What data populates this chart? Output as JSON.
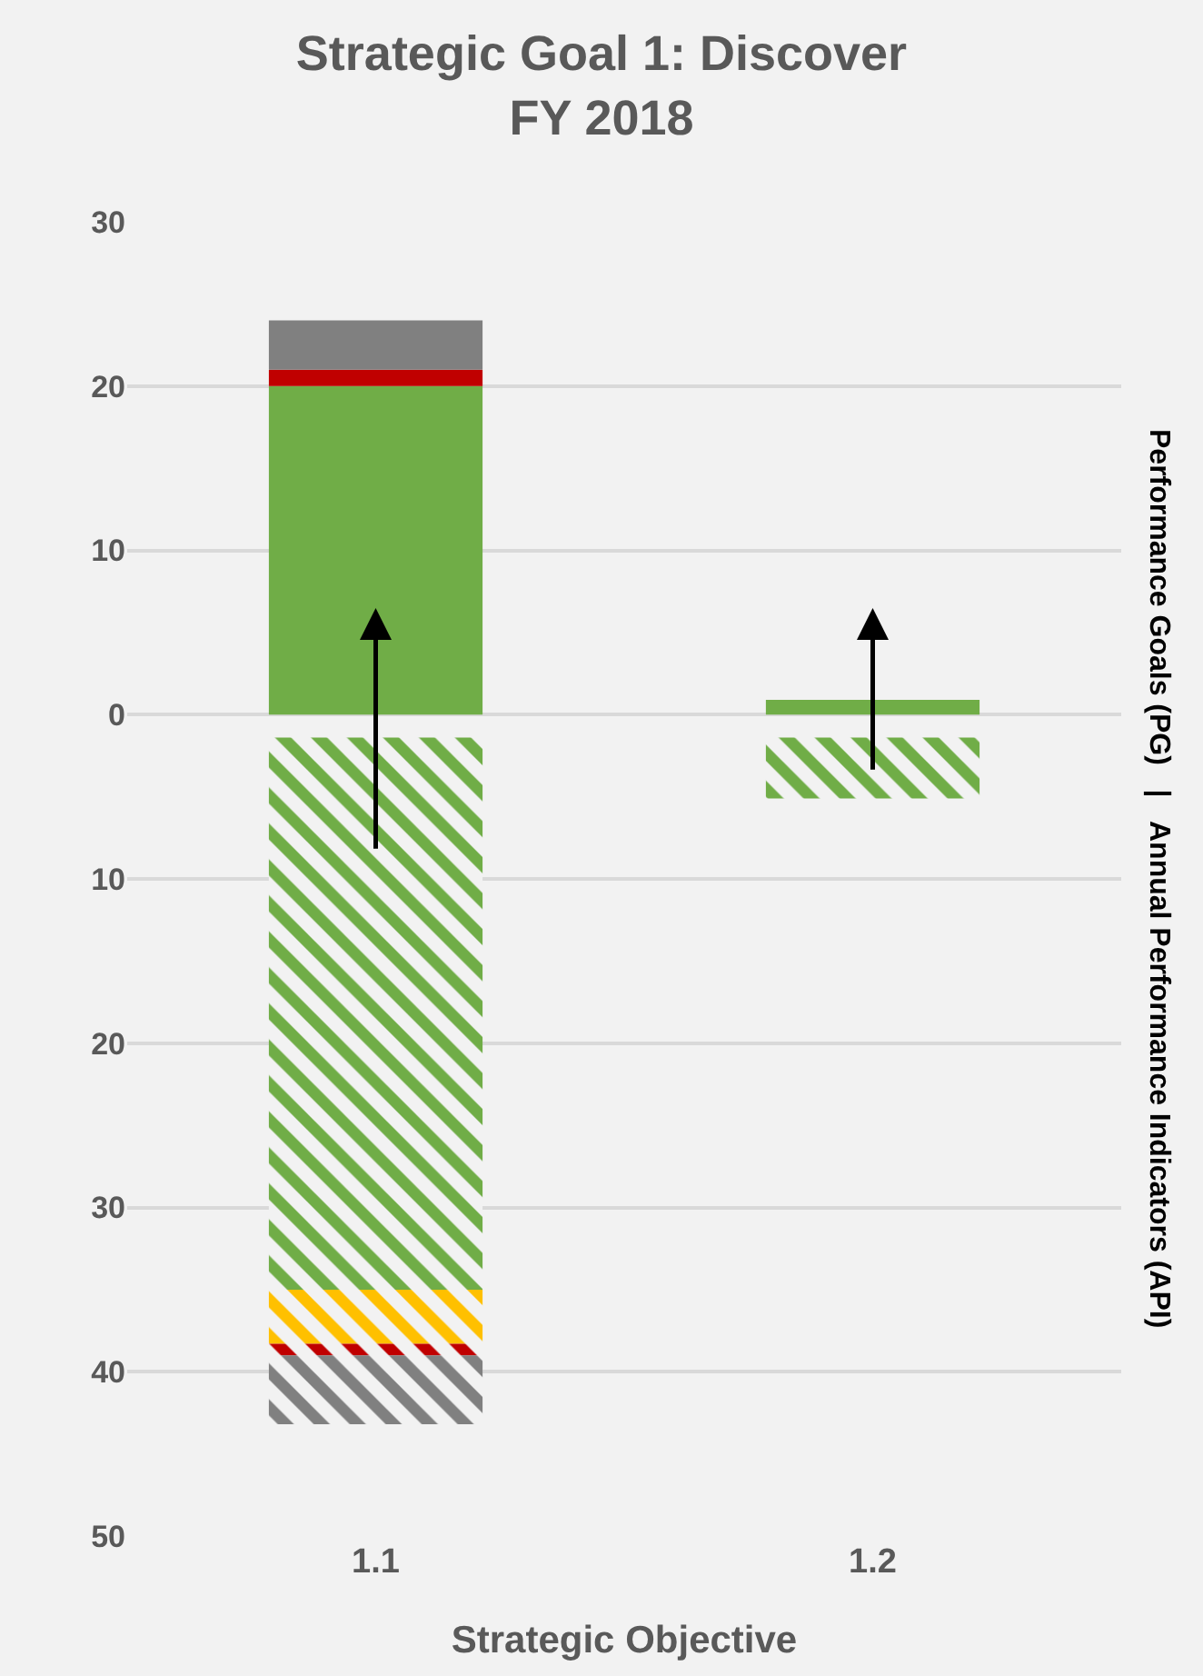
{
  "chart_data": {
    "type": "bar",
    "title": "Strategic Goal 1: Discover\nFY 2018",
    "xlabel": "Strategic Objective",
    "y2label": "Performance Goals (PG)   |   Annual Performance Indicators (API)",
    "categories": [
      "1.1",
      "1.2"
    ],
    "series": [
      {
        "color": "#70ad47",
        "values": [
          20,
          0.9
        ],
        "base": [
          0,
          0
        ]
      },
      {
        "color": "#c00000",
        "values": [
          1,
          null
        ],
        "base": [
          20,
          null
        ]
      },
      {
        "color": "#808080",
        "values": [
          3,
          null
        ],
        "base": [
          21,
          null
        ]
      },
      {
        "color": "#70ad47",
        "values": [
          -33.6,
          -3.7
        ],
        "base": [
          -1.4,
          -1.4
        ]
      },
      {
        "color": "#ffc000",
        "values": [
          -3.3,
          null
        ],
        "base": [
          -35,
          null
        ]
      },
      {
        "color": "#c00000",
        "values": [
          -0.7,
          null
        ],
        "base": [
          -38.3,
          null
        ]
      },
      {
        "color": "#808080",
        "values": [
          -4.2,
          null
        ],
        "base": [
          -39,
          null
        ]
      }
    ],
    "ylim": [
      -50,
      30
    ],
    "yticks": [
      30,
      20,
      10,
      0,
      {
        "value": -10,
        "label": "10"
      },
      {
        "value": -20,
        "label": "20"
      },
      {
        "value": -30,
        "label": "30"
      },
      {
        "value": -40,
        "label": "40"
      },
      {
        "value": -50,
        "label": "50"
      }
    ],
    "grid": "y"
  }
}
